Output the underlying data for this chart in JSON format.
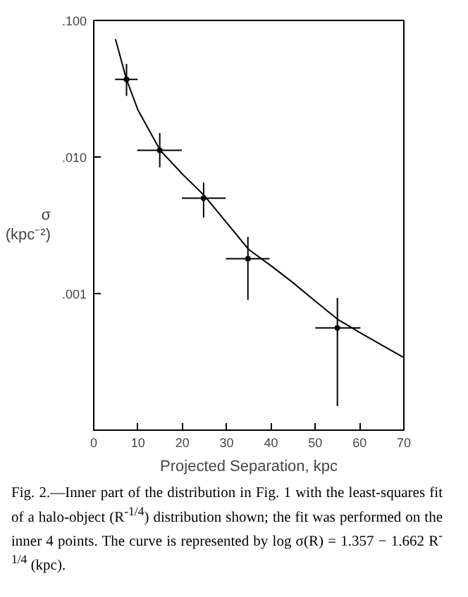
{
  "chart_data": {
    "type": "scatter",
    "xlabel": "Projected Separation, kpc",
    "ylabel": "σ\n(kpc⁻²)",
    "log": "y",
    "xlim": [
      0,
      70
    ],
    "ylim": [
      0.0001,
      0.1
    ],
    "xticks": [
      0,
      10,
      20,
      30,
      40,
      50,
      60,
      70
    ],
    "yticks": [
      {
        "value": 0.001,
        "label": ".001"
      },
      {
        "value": 0.01,
        "label": ".010"
      },
      {
        "value": 0.1,
        "label": ".100"
      }
    ],
    "grid": false,
    "series": [
      {
        "marker": "circle",
        "color": "#000000",
        "x": [
          7.4,
          14.9,
          24.8,
          34.8,
          55
        ],
        "values": [
          0.037,
          0.0112,
          0.005,
          0.0018,
          0.00056
        ],
        "errors": [
          [
            0.028,
            0.048
          ],
          [
            0.0084,
            0.015
          ],
          [
            0.0036,
            0.0065
          ],
          [
            0.0009,
            0.0026
          ],
          [
            0.00015,
            0.00093
          ]
        ],
        "xerrors": [
          [
            4.8,
            9.9
          ],
          [
            9.8,
            19.9
          ],
          [
            19.9,
            29.8
          ],
          [
            29.8,
            39.7
          ],
          [
            50,
            60.2
          ]
        ]
      },
      {
        "type": "line",
        "marker": "none",
        "color": "#000000",
        "line_style": "solid",
        "x": [
          4.9,
          7.4,
          10,
          15,
          20,
          25,
          30,
          35,
          40,
          45,
          50,
          55,
          60,
          65,
          70
        ],
        "values": [
          0.073,
          0.037,
          0.022,
          0.0112,
          0.0075,
          0.0052,
          0.0033,
          0.0021,
          0.0016,
          0.0012,
          0.00088,
          0.00065,
          0.00052,
          0.00042,
          0.00034
        ]
      }
    ],
    "annotations": [
      "Fig. 2.—Inner part of the distribution in Fig. 1 with the least-squares fit of a halo-object (R$^{-1/4}$) distribution shown; the fit was performed on the inner 4 points. The curve is represented by log σ(R) = 1.357 − 1.662 R$^{-1/4}$ (kpc)."
    ]
  }
}
